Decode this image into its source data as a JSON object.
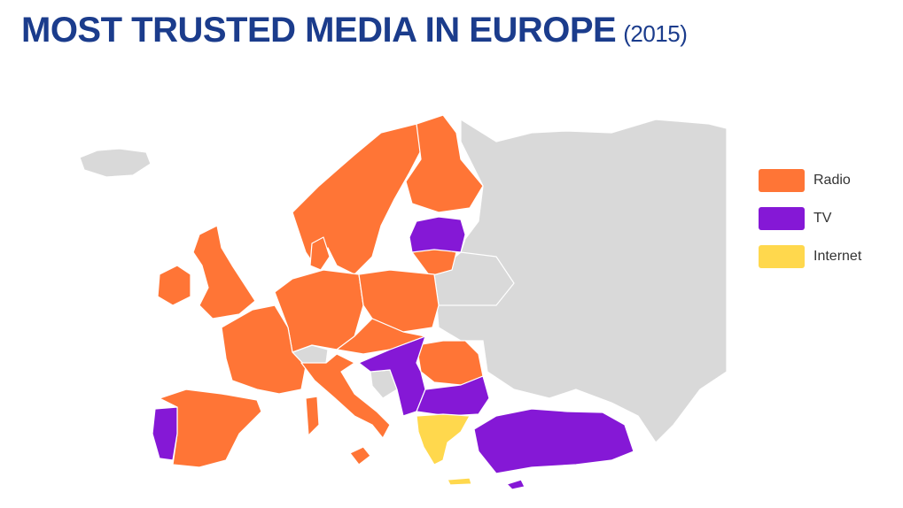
{
  "title": "MOST TRUSTED MEDIA IN EUROPE",
  "subtitle": "(2015)",
  "legend": [
    {
      "label": "Radio",
      "color": "#ff7536"
    },
    {
      "label": "TV",
      "color": "#8518d6"
    },
    {
      "label": "Internet",
      "color": "#ffd84d"
    }
  ],
  "map_color": "#d9d9d9"
}
